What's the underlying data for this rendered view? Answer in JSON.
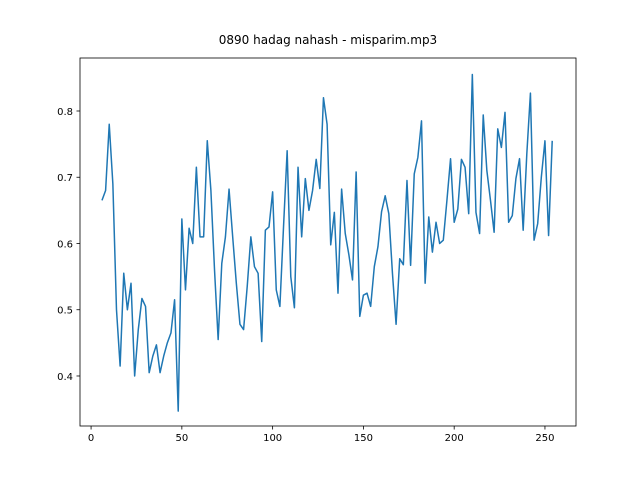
{
  "chart_data": {
    "type": "line",
    "title": "0890 hadag nahash - misparim.mp3",
    "x": [
      6,
      8,
      10,
      12,
      14,
      16,
      18,
      20,
      22,
      24,
      26,
      28,
      30,
      32,
      34,
      36,
      38,
      40,
      42,
      44,
      46,
      48,
      50,
      52,
      54,
      56,
      58,
      60,
      62,
      64,
      66,
      68,
      70,
      72,
      74,
      76,
      78,
      80,
      82,
      84,
      86,
      88,
      90,
      92,
      94,
      96,
      98,
      100,
      102,
      104,
      106,
      108,
      110,
      112,
      114,
      116,
      118,
      120,
      122,
      124,
      126,
      128,
      130,
      132,
      134,
      136,
      138,
      140,
      142,
      144,
      146,
      148,
      150,
      152,
      154,
      156,
      158,
      160,
      162,
      164,
      166,
      168,
      170,
      172,
      174,
      176,
      178,
      180,
      182,
      184,
      186,
      188,
      190,
      192,
      194,
      196,
      198,
      200,
      202,
      204,
      206,
      208,
      210,
      212,
      214,
      216,
      218,
      220,
      222,
      224,
      226,
      228,
      230,
      232,
      234,
      236,
      238,
      240,
      242,
      244,
      246,
      248,
      250,
      252,
      254
    ],
    "series": [
      {
        "color": "#1f77b4",
        "values": [
          0.665,
          0.68,
          0.78,
          0.69,
          0.5,
          0.415,
          0.555,
          0.5,
          0.54,
          0.4,
          0.47,
          0.517,
          0.505,
          0.405,
          0.43,
          0.447,
          0.405,
          0.43,
          0.45,
          0.465,
          0.515,
          0.347,
          0.637,
          0.53,
          0.623,
          0.6,
          0.715,
          0.61,
          0.61,
          0.755,
          0.68,
          0.56,
          0.455,
          0.57,
          0.61,
          0.682,
          0.61,
          0.54,
          0.478,
          0.47,
          0.535,
          0.61,
          0.565,
          0.555,
          0.452,
          0.62,
          0.625,
          0.678,
          0.53,
          0.505,
          0.625,
          0.74,
          0.55,
          0.503,
          0.715,
          0.61,
          0.698,
          0.65,
          0.68,
          0.727,
          0.683,
          0.82,
          0.78,
          0.598,
          0.647,
          0.525,
          0.682,
          0.615,
          0.583,
          0.545,
          0.708,
          0.49,
          0.522,
          0.525,
          0.505,
          0.565,
          0.595,
          0.648,
          0.672,
          0.645,
          0.555,
          0.478,
          0.577,
          0.568,
          0.695,
          0.567,
          0.705,
          0.73,
          0.785,
          0.54,
          0.64,
          0.587,
          0.632,
          0.6,
          0.605,
          0.665,
          0.728,
          0.632,
          0.652,
          0.727,
          0.715,
          0.645,
          0.855,
          0.647,
          0.615,
          0.794,
          0.71,
          0.665,
          0.617,
          0.773,
          0.745,
          0.798,
          0.632,
          0.642,
          0.698,
          0.728,
          0.62,
          0.735,
          0.827,
          0.605,
          0.63,
          0.7,
          0.755,
          0.612,
          0.755
        ]
      }
    ],
    "xlim": [
      -6.1,
      267.1
    ],
    "ylim": [
      0.3245,
      0.88
    ],
    "xticks": [
      0,
      50,
      100,
      150,
      200,
      250
    ],
    "yticks": [
      0.4,
      0.5,
      0.6,
      0.7,
      0.8
    ]
  }
}
